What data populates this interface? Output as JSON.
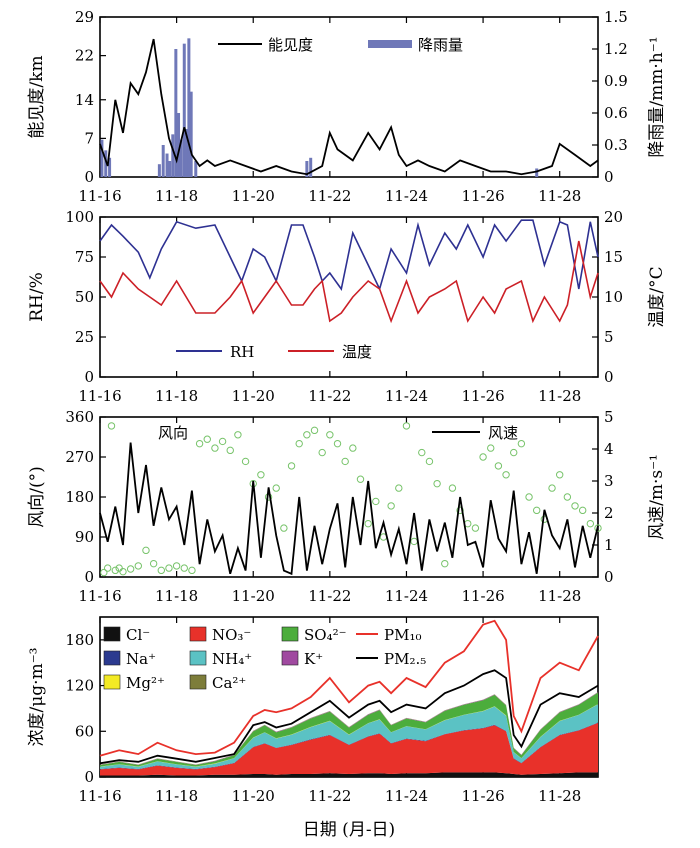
{
  "chart_data": [
    {
      "type": "line",
      "panel": "a",
      "x_ticks": [
        "11-16",
        "11-18",
        "11-20",
        "11-22",
        "11-24",
        "11-26",
        "11-28"
      ],
      "ylabel": "能见度/km",
      "y2label": "降雨量/mm·h⁻¹",
      "ylim": [
        0,
        29
      ],
      "y_ticks": [
        0,
        7,
        14,
        22,
        29
      ],
      "y2lim": [
        0,
        1.5
      ],
      "y2_ticks": [
        "0",
        "0.3",
        "0.6",
        "0.9",
        "1.2",
        "1.5"
      ],
      "legend_position": "top-right",
      "series": [
        {
          "name": "能见度",
          "color": "#000000",
          "x": [
            16.0,
            16.2,
            16.4,
            16.6,
            16.8,
            17.0,
            17.2,
            17.4,
            17.6,
            17.8,
            18.0,
            18.2,
            18.4,
            18.6,
            18.8,
            19.0,
            19.4,
            19.8,
            20.2,
            20.6,
            21.0,
            21.4,
            21.8,
            22.0,
            22.2,
            22.6,
            23.0,
            23.3,
            23.6,
            23.8,
            24.0,
            24.3,
            24.6,
            25.0,
            25.4,
            25.8,
            26.2,
            26.6,
            27.0,
            27.4,
            27.8,
            28.0,
            28.4,
            28.8,
            29.0
          ],
          "values": [
            6,
            2,
            14,
            8,
            17,
            15,
            19,
            25,
            15,
            7,
            3,
            9,
            4,
            2,
            3,
            2,
            3,
            2,
            1,
            2,
            1,
            0.5,
            2,
            8,
            5,
            3,
            8,
            5,
            9,
            4,
            2,
            3,
            2,
            1,
            3,
            2,
            1,
            1,
            0.5,
            1,
            2,
            6,
            4,
            2,
            3
          ]
        },
        {
          "name": "降雨量",
          "color": "#6f78b8",
          "type": "bar",
          "x": [
            16.05,
            16.15,
            16.25,
            17.55,
            17.65,
            17.75,
            17.82,
            17.9,
            17.98,
            18.05,
            18.12,
            18.2,
            18.25,
            18.32,
            18.38,
            18.5,
            21.4,
            21.5,
            27.4
          ],
          "values": [
            0.35,
            0.25,
            0.18,
            0.12,
            0.3,
            0.22,
            0.15,
            0.4,
            1.2,
            0.6,
            0.35,
            1.25,
            0.45,
            1.3,
            0.8,
            0.15,
            0.15,
            0.18,
            0.08
          ]
        }
      ]
    },
    {
      "type": "line",
      "panel": "b",
      "x_ticks": [
        "11-16",
        "11-18",
        "11-20",
        "11-22",
        "11-24",
        "11-26",
        "11-28"
      ],
      "ylabel": "RH/%",
      "y2label": "温度/°C",
      "ylim": [
        0,
        100
      ],
      "y_ticks": [
        0,
        25,
        50,
        75,
        100
      ],
      "y2lim": [
        0,
        20
      ],
      "y2_ticks": [
        0,
        5,
        10,
        15,
        20
      ],
      "legend_position": "bottom-center",
      "series": [
        {
          "name": "RH",
          "color": "#2e3192",
          "x": [
            16.0,
            16.3,
            16.6,
            17.0,
            17.3,
            17.6,
            18.0,
            18.5,
            19.0,
            19.4,
            19.7,
            20.0,
            20.3,
            20.6,
            21.0,
            21.3,
            21.6,
            21.8,
            22.0,
            22.3,
            22.6,
            23.0,
            23.3,
            23.6,
            24.0,
            24.3,
            24.6,
            25.0,
            25.3,
            25.6,
            26.0,
            26.3,
            26.6,
            27.0,
            27.3,
            27.6,
            28.0,
            28.2,
            28.5,
            28.8,
            29.0
          ],
          "values": [
            85,
            95,
            88,
            78,
            62,
            80,
            97,
            93,
            95,
            75,
            60,
            80,
            75,
            60,
            95,
            95,
            75,
            60,
            65,
            55,
            90,
            70,
            55,
            80,
            65,
            95,
            70,
            90,
            80,
            95,
            75,
            95,
            85,
            98,
            98,
            70,
            97,
            95,
            55,
            97,
            75
          ]
        },
        {
          "name": "温度",
          "color": "#cc2027",
          "x": [
            16.0,
            16.3,
            16.6,
            17.0,
            17.3,
            17.6,
            18.0,
            18.5,
            19.0,
            19.4,
            19.7,
            20.0,
            20.3,
            20.6,
            21.0,
            21.3,
            21.6,
            21.8,
            22.0,
            22.3,
            22.6,
            23.0,
            23.3,
            23.6,
            24.0,
            24.3,
            24.6,
            25.0,
            25.3,
            25.6,
            26.0,
            26.3,
            26.6,
            27.0,
            27.3,
            27.6,
            28.0,
            28.2,
            28.5,
            28.8,
            29.0
          ],
          "values": [
            12,
            10,
            13,
            11,
            10,
            9,
            12,
            8,
            8,
            10,
            12,
            8,
            10,
            12,
            9,
            9,
            11,
            12,
            7,
            8,
            10,
            12,
            11,
            7,
            12,
            8,
            10,
            11,
            12,
            7,
            10,
            8,
            11,
            12,
            7,
            10,
            7,
            9,
            17,
            10,
            13
          ]
        }
      ]
    },
    {
      "type": "scatter",
      "panel": "c",
      "x_ticks": [
        "11-16",
        "11-18",
        "11-20",
        "11-22",
        "11-24",
        "11-26",
        "11-28"
      ],
      "ylabel": "风向/(°)",
      "y2label": "风速/m·s⁻¹",
      "ylim": [
        0,
        360
      ],
      "y_ticks": [
        0,
        90,
        180,
        270,
        360
      ],
      "y2lim": [
        0,
        5
      ],
      "y2_ticks": [
        0,
        1,
        2,
        3,
        4,
        5
      ],
      "series": [
        {
          "name": "风向",
          "color": "#77c36a",
          "marker": "hollow-circle",
          "x": [
            16.1,
            16.2,
            16.3,
            16.4,
            16.5,
            16.6,
            16.8,
            17.0,
            17.2,
            17.4,
            17.6,
            17.8,
            18.0,
            18.2,
            18.4,
            18.6,
            18.8,
            19.0,
            19.2,
            19.4,
            19.6,
            19.8,
            20.0,
            20.2,
            20.4,
            20.6,
            20.8,
            21.0,
            21.2,
            21.4,
            21.6,
            21.8,
            22.0,
            22.2,
            22.4,
            22.6,
            22.8,
            23.0,
            23.2,
            23.4,
            23.6,
            23.8,
            24.0,
            24.2,
            24.4,
            24.6,
            24.8,
            25.0,
            25.2,
            25.4,
            25.6,
            25.8,
            26.0,
            26.2,
            26.4,
            26.6,
            26.8,
            27.0,
            27.2,
            27.4,
            27.6,
            27.8,
            28.0,
            28.2,
            28.4,
            28.6,
            28.8,
            29.0
          ],
          "values": [
            10,
            20,
            340,
            15,
            20,
            12,
            18,
            25,
            60,
            30,
            15,
            20,
            25,
            20,
            15,
            300,
            310,
            290,
            305,
            285,
            320,
            260,
            210,
            230,
            180,
            200,
            110,
            250,
            300,
            320,
            330,
            280,
            320,
            300,
            260,
            290,
            220,
            120,
            170,
            90,
            160,
            200,
            340,
            80,
            280,
            260,
            210,
            30,
            200,
            150,
            120,
            110,
            270,
            290,
            250,
            230,
            280,
            300,
            180,
            150,
            130,
            200,
            230,
            180,
            160,
            150,
            120,
            110
          ]
        },
        {
          "name": "风速",
          "color": "#000000",
          "x": [
            16.0,
            16.2,
            16.4,
            16.6,
            16.8,
            17.0,
            17.2,
            17.4,
            17.6,
            17.8,
            18.0,
            18.2,
            18.4,
            18.6,
            18.8,
            19.0,
            19.2,
            19.4,
            19.6,
            19.8,
            20.0,
            20.2,
            20.4,
            20.6,
            20.8,
            21.0,
            21.2,
            21.4,
            21.6,
            21.8,
            22.0,
            22.2,
            22.4,
            22.6,
            22.8,
            23.0,
            23.2,
            23.4,
            23.6,
            23.8,
            24.0,
            24.2,
            24.4,
            24.6,
            24.8,
            25.0,
            25.2,
            25.4,
            25.6,
            25.8,
            26.0,
            26.2,
            26.4,
            26.6,
            26.8,
            27.0,
            27.2,
            27.4,
            27.6,
            27.8,
            28.0,
            28.2,
            28.4,
            28.6,
            28.8,
            29.0
          ],
          "values": [
            2.0,
            1.1,
            2.2,
            1.0,
            4.2,
            2.0,
            3.5,
            1.6,
            2.8,
            1.8,
            2.2,
            1.0,
            2.7,
            0.4,
            1.8,
            0.8,
            1.3,
            0.1,
            0.9,
            0.2,
            3.0,
            0.6,
            2.8,
            1.3,
            0.2,
            0.1,
            2.5,
            0.2,
            1.6,
            0.4,
            1.5,
            2.3,
            0.3,
            2.5,
            1.0,
            3.0,
            0.9,
            1.7,
            0.7,
            1.5,
            0.4,
            2.0,
            0.2,
            1.8,
            0.8,
            1.7,
            0.6,
            2.5,
            1.0,
            1.1,
            0.3,
            2.4,
            1.2,
            0.8,
            2.7,
            0.4,
            1.4,
            0.1,
            2.1,
            1.3,
            0.9,
            1.8,
            0.3,
            1.6,
            0.6,
            1.6
          ]
        }
      ]
    },
    {
      "type": "area",
      "panel": "d",
      "x_ticks": [
        "11-16",
        "11-18",
        "11-20",
        "11-22",
        "11-24",
        "11-26",
        "11-28"
      ],
      "ylabel": "浓度/μg·m⁻³",
      "xlabel": "日期 (月-日)",
      "ylim": [
        0,
        210
      ],
      "y_ticks": [
        0,
        60,
        120,
        180
      ],
      "x": [
        16.0,
        16.5,
        17.0,
        17.5,
        18.0,
        18.5,
        19.0,
        19.5,
        20.0,
        20.3,
        20.6,
        21.0,
        21.5,
        22.0,
        22.5,
        23.0,
        23.3,
        23.6,
        24.0,
        24.5,
        25.0,
        25.5,
        26.0,
        26.3,
        26.6,
        26.8,
        27.0,
        27.5,
        28.0,
        28.5,
        29.0
      ],
      "series": [
        {
          "name": "Cl⁻",
          "color": "#111111",
          "values": [
            2,
            2,
            2,
            3,
            2,
            2,
            3,
            3,
            4,
            4,
            3,
            4,
            4,
            5,
            4,
            5,
            5,
            4,
            5,
            5,
            6,
            6,
            6,
            6,
            5,
            4,
            3,
            4,
            5,
            6,
            6
          ]
        },
        {
          "name": "NO₃⁻",
          "color": "#e8312a",
          "values": [
            8,
            10,
            8,
            12,
            10,
            8,
            10,
            15,
            35,
            40,
            35,
            38,
            45,
            50,
            38,
            48,
            52,
            40,
            45,
            42,
            50,
            55,
            58,
            62,
            55,
            20,
            15,
            35,
            50,
            55,
            65
          ]
        },
        {
          "name": "Na⁺",
          "color": "#2b3a8f",
          "values": [
            0.5,
            0.5,
            0.5,
            0.5,
            0.5,
            0.5,
            0.5,
            0.5,
            0.5,
            0.5,
            0.5,
            0.5,
            0.5,
            0.5,
            0.5,
            0.5,
            0.5,
            0.5,
            0.5,
            0.5,
            0.5,
            0.5,
            0.5,
            0.5,
            0.5,
            0.5,
            0.5,
            0.5,
            0.5,
            0.5,
            0.5
          ]
        },
        {
          "name": "NH₄⁺",
          "color": "#5bc2c4",
          "values": [
            3,
            4,
            3,
            5,
            4,
            3,
            4,
            6,
            12,
            14,
            12,
            13,
            16,
            18,
            13,
            17,
            18,
            14,
            16,
            15,
            18,
            20,
            22,
            24,
            20,
            8,
            6,
            13,
            18,
            20,
            24
          ]
        },
        {
          "name": "Mg²⁺",
          "color": "#f3ea24",
          "values": [
            0.3,
            0.3,
            0.3,
            0.3,
            0.3,
            0.3,
            0.3,
            0.3,
            0.3,
            0.3,
            0.3,
            0.3,
            0.3,
            0.3,
            0.3,
            0.3,
            0.3,
            0.3,
            0.3,
            0.3,
            0.3,
            0.3,
            0.3,
            0.3,
            0.3,
            0.3,
            0.3,
            0.3,
            0.3,
            0.3,
            0.3
          ]
        },
        {
          "name": "SO₄²⁻",
          "color": "#4cad3c",
          "values": [
            2,
            3,
            2,
            3,
            3,
            2,
            3,
            4,
            8,
            9,
            8,
            9,
            11,
            12,
            9,
            11,
            12,
            9,
            10,
            9,
            12,
            13,
            14,
            15,
            13,
            5,
            4,
            9,
            11,
            13,
            15
          ]
        },
        {
          "name": "K⁺",
          "color": "#a04aa0",
          "values": [
            0.3,
            0.3,
            0.3,
            0.3,
            0.3,
            0.3,
            0.3,
            0.3,
            0.5,
            0.5,
            0.5,
            0.5,
            0.5,
            0.5,
            0.5,
            0.5,
            0.5,
            0.5,
            0.5,
            0.5,
            0.5,
            0.5,
            0.5,
            0.5,
            0.5,
            0.3,
            0.3,
            0.5,
            0.5,
            0.5,
            0.5
          ]
        },
        {
          "name": "Ca²⁺",
          "color": "#7d7d3a",
          "values": [
            0.3,
            0.3,
            0.3,
            0.3,
            0.3,
            0.3,
            0.3,
            0.3,
            0.3,
            0.3,
            0.3,
            0.3,
            0.3,
            0.3,
            0.3,
            0.3,
            0.3,
            0.3,
            0.3,
            0.3,
            0.3,
            0.3,
            0.3,
            0.3,
            0.3,
            0.3,
            0.3,
            0.3,
            0.3,
            0.3,
            0.3
          ]
        }
      ],
      "lines": [
        {
          "name": "PM₁₀",
          "color": "#e8312a",
          "values": [
            28,
            35,
            30,
            45,
            35,
            30,
            32,
            45,
            80,
            88,
            85,
            90,
            105,
            130,
            98,
            120,
            125,
            110,
            130,
            118,
            150,
            165,
            200,
            205,
            180,
            80,
            60,
            130,
            150,
            140,
            185
          ]
        },
        {
          "name": "PM₂.₅",
          "color": "#000000",
          "values": [
            18,
            22,
            20,
            28,
            24,
            20,
            25,
            30,
            68,
            72,
            65,
            70,
            85,
            100,
            78,
            95,
            100,
            85,
            95,
            90,
            110,
            120,
            135,
            140,
            130,
            55,
            40,
            95,
            110,
            105,
            120
          ]
        }
      ]
    }
  ]
}
